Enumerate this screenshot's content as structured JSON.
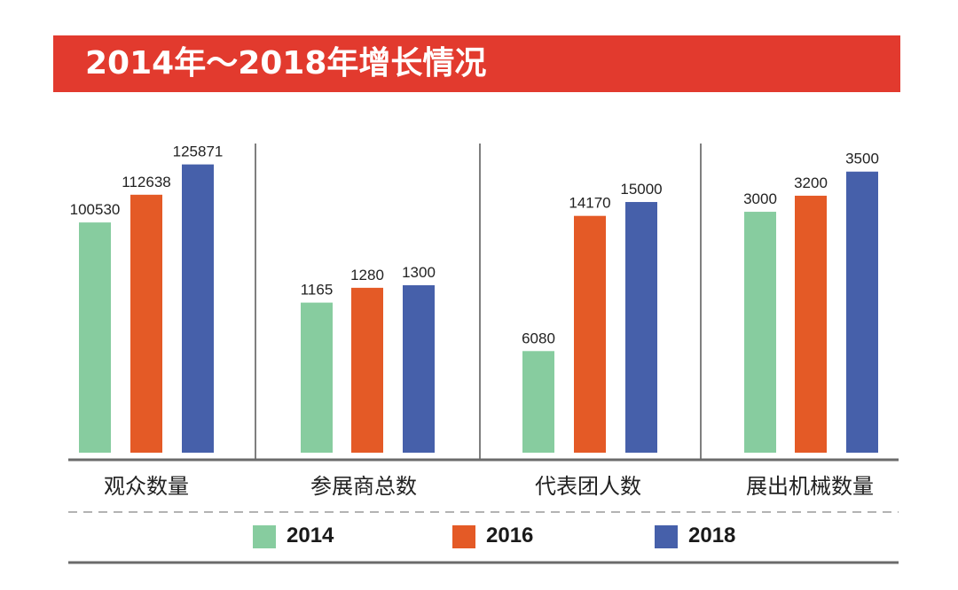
{
  "header": {
    "title": "2014年～2018年增长情况"
  },
  "colors": {
    "banner": "#e23a2e",
    "series_2014": "#87cc9f",
    "series_2016": "#e45a26",
    "series_2018": "#4660aa"
  },
  "chart_data": {
    "type": "bar",
    "title": "2014年～2018年增长情况",
    "independent_scale_per_category": true,
    "categories": [
      "观众数量",
      "参展商总数",
      "代表团人数",
      "展出机械数量"
    ],
    "series": [
      {
        "name": "2014",
        "values": [
          100530,
          1165,
          6080,
          3000
        ]
      },
      {
        "name": "2016",
        "values": [
          112638,
          1280,
          14170,
          3200
        ]
      },
      {
        "name": "2018",
        "values": [
          125871,
          1300,
          15000,
          3500
        ]
      }
    ],
    "category_ylim": [
      [
        0,
        135000
      ],
      [
        0,
        2400
      ],
      [
        0,
        18500
      ],
      [
        0,
        3850
      ]
    ],
    "legend": [
      "2014",
      "2016",
      "2018"
    ],
    "legend_position": "bottom",
    "xlabel": "",
    "ylabel": "",
    "grid": false
  }
}
